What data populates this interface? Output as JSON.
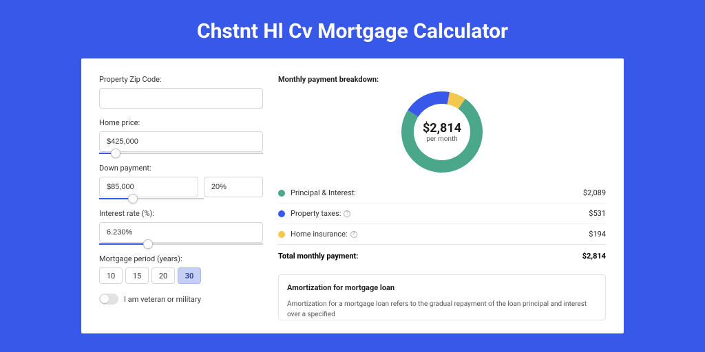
{
  "page": {
    "title": "Chstnt Hl Cv Mortgage Calculator",
    "background_color": "#3858e9"
  },
  "form": {
    "zip": {
      "label": "Property Zip Code:",
      "value": ""
    },
    "home_price": {
      "label": "Home price:",
      "value": "$425,000",
      "slider_percent": 10
    },
    "down_payment": {
      "label": "Down payment:",
      "amount": "$85,000",
      "percent": "20%",
      "slider_percent": 20
    },
    "interest_rate": {
      "label": "Interest rate (%):",
      "value": "6.230%",
      "slider_percent": 30
    },
    "period": {
      "label": "Mortgage period (years):",
      "options": [
        "10",
        "15",
        "20",
        "30"
      ],
      "selected": "30"
    },
    "veteran": {
      "label": "I am veteran or military",
      "checked": false
    }
  },
  "breakdown": {
    "title": "Monthly payment breakdown:",
    "chart": {
      "type": "donut",
      "center_value": "$2,814",
      "center_sub": "per month",
      "segments": [
        {
          "name": "principal_interest",
          "value": 2089,
          "color": "#4aa789",
          "percent": 74.2
        },
        {
          "name": "property_taxes",
          "value": 531,
          "color": "#3858e9",
          "percent": 18.9
        },
        {
          "name": "home_insurance",
          "value": 194,
          "color": "#f2c94c",
          "percent": 6.9
        }
      ],
      "stroke_width": 18,
      "radius": 50,
      "size": 120,
      "background_color": "#ffffff"
    },
    "legend": [
      {
        "label": "Principal & Interest:",
        "value": "$2,089",
        "color": "#4aa789",
        "has_info": false
      },
      {
        "label": "Property taxes:",
        "value": "$531",
        "color": "#3858e9",
        "has_info": true
      },
      {
        "label": "Home insurance:",
        "value": "$194",
        "color": "#f2c94c",
        "has_info": true
      }
    ],
    "total": {
      "label": "Total monthly payment:",
      "value": "$2,814"
    }
  },
  "amortization": {
    "title": "Amortization for mortgage loan",
    "text": "Amortization for a mortgage loan refers to the gradual repayment of the loan principal and interest over a specified"
  }
}
